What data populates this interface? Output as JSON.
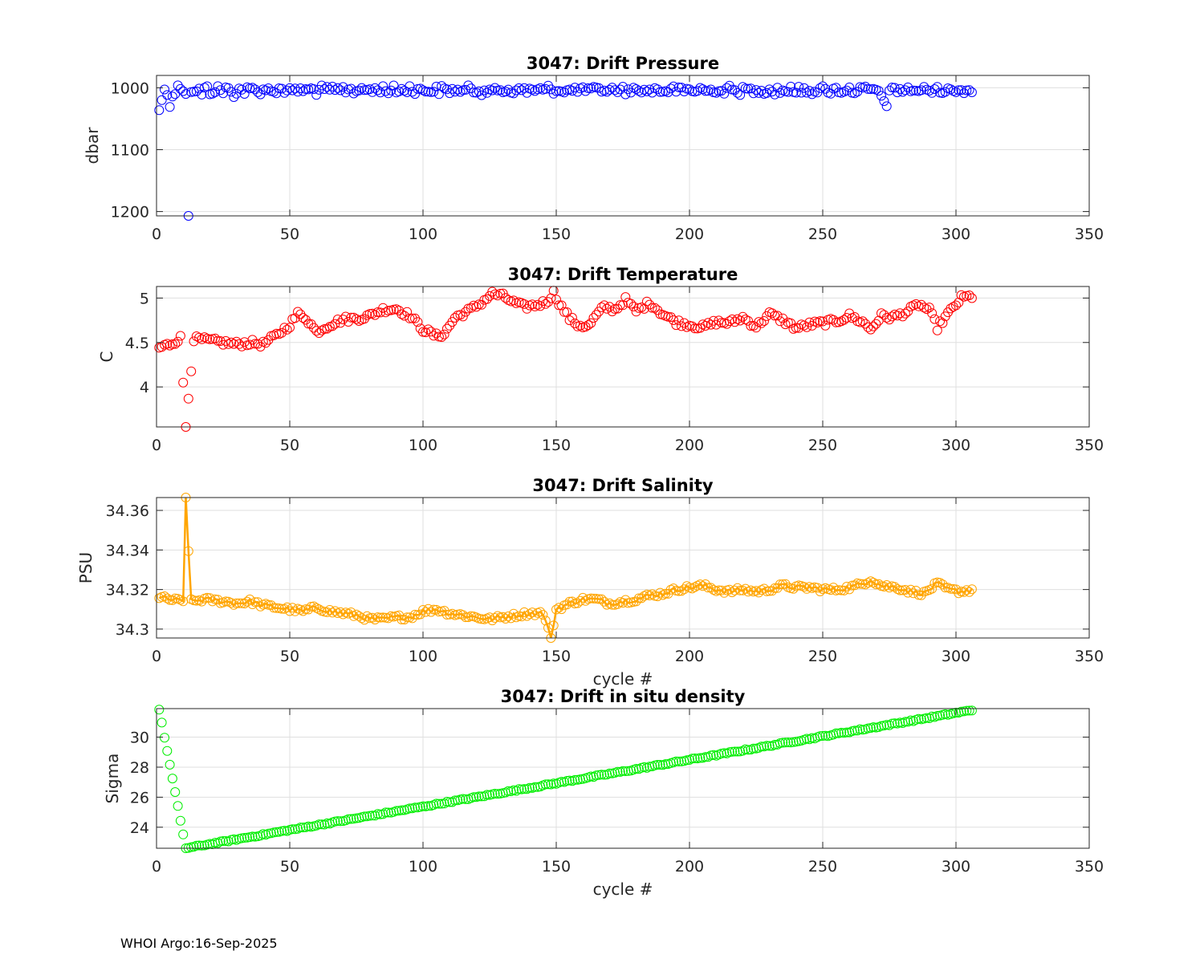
{
  "footer": "WHOI Argo:16-Sep-2025",
  "chart_data": [
    {
      "type": "scatter",
      "title": "3047: Drift Pressure",
      "xlabel": "",
      "ylabel": "dbar",
      "xlim": [
        0,
        350
      ],
      "ylim": [
        980,
        1207
      ],
      "yreverse": true,
      "xticks": [
        0,
        50,
        100,
        150,
        200,
        250,
        300,
        350
      ],
      "yticks": [
        1000,
        1100,
        1200
      ],
      "color": "#0000ff",
      "x_start": 1,
      "base": [
        1036,
        1018,
        1005,
        1010,
        1025,
        1012,
        1008,
        1000,
        997,
        1003,
        1006,
        1207,
        1004,
        1008,
        1002,
        1005,
        1010,
        1003,
        1001,
        1007,
        1005,
        1003,
        1002,
        1004,
        1006,
        1001,
        1003,
        1008,
        1010,
        1005,
        1002,
        1004,
        1006,
        1003,
        1005,
        1002,
        1004,
        1007,
        1005,
        1003,
        1001,
        1004,
        1006,
        1002,
        1005,
        1003,
        1001,
        1004,
        1002,
        1005,
        1003,
        1006,
        1004,
        1002,
        1003,
        1005,
        1004,
        1002,
        1003,
        1006,
        1004,
        1002,
        1005,
        1003,
        1001,
        1004,
        1006,
        1003,
        1005,
        1002,
        1004,
        1003,
        1001,
        1005,
        1004,
        1002,
        1006,
        1003,
        1004,
        1002,
        1005,
        1003,
        1004,
        1002,
        1001,
        1005,
        1004,
        1003,
        1002,
        1006,
        1004,
        1003,
        1001,
        1005,
        1000,
        1003,
        1004,
        1002,
        1005,
        1003,
        1004,
        1002,
        1006,
        1004,
        1003,
        1005,
        1002,
        1004,
        1003,
        1005,
        1004,
        1002,
        1006,
        1003,
        1005,
        1004,
        1002,
        1003,
        1005,
        1004,
        1002,
        1006,
        1003,
        1004,
        1005,
        1010,
        1003,
        1004,
        1002,
        1005,
        1004,
        1003,
        1006,
        1004,
        1002,
        1005,
        1003,
        1004,
        1006,
        1002,
        1005,
        1003,
        1004,
        1002,
        1006,
        1004,
        1001,
        1002,
        1004,
        1003,
        1005,
        1002,
        1004,
        1006,
        1003,
        1005,
        1004,
        1002,
        1003,
        1005,
        1004,
        1002,
        1006,
        1003,
        1004,
        1005,
        1003,
        1002,
        1004,
        1005,
        1003,
        1004,
        1002,
        1005,
        1003,
        1006,
        1004,
        1002,
        1003,
        1005,
        1004,
        1002,
        1006,
        1003,
        1005,
        1004,
        1003,
        1002,
        1004,
        1006,
        1003,
        1005,
        1004,
        1002,
        1003,
        1005,
        1004,
        1006,
        1002,
        1004,
        1003,
        1005,
        1004,
        1002,
        1003,
        1006,
        1004,
        1005,
        1002,
        1003,
        1004,
        1006,
        1005,
        1003,
        1002,
        1004,
        1005,
        1003,
        1006,
        1004,
        1002,
        1003,
        1005,
        1004,
        1006,
        1003,
        1002,
        1004,
        1005,
        1003,
        1004,
        1006,
        1002,
        1005,
        1003,
        1004,
        1006,
        1003,
        1002,
        1005,
        1004,
        1006,
        1003,
        1004,
        1002,
        1005,
        1006,
        1003,
        1004,
        1002,
        1005,
        1003,
        1006,
        1004,
        1002,
        1003,
        1005,
        1004,
        1002,
        1003,
        1004,
        1005,
        1003,
        1002,
        1004,
        1003,
        1005,
        1004,
        1002,
        1003,
        1010,
        1015,
        1020,
        1025,
        1008,
        1005,
        1003,
        1004,
        1002,
        1005,
        1003,
        1004,
        1002,
        1005,
        1003,
        1004,
        1006,
        1003,
        1002,
        1004,
        1005,
        1003,
        1004,
        1002,
        1005,
        1003,
        1004,
        1006,
        1003,
        1002,
        1005,
        1004,
        1003,
        1002,
        1004,
        1005,
        1003
      ],
      "spread": 6
    },
    {
      "type": "scatter",
      "title": "3047: Drift Temperature",
      "xlabel": "",
      "ylabel": "C",
      "xlim": [
        0,
        350
      ],
      "ylim": [
        3.55,
        5.13
      ],
      "xticks": [
        0,
        50,
        100,
        150,
        200,
        250,
        300,
        350
      ],
      "yticks": [
        4,
        4.5,
        5
      ],
      "color": "#ff0000",
      "x_start": 1,
      "keys": [
        [
          1,
          4.44
        ],
        [
          5,
          4.48
        ],
        [
          9,
          4.55
        ],
        [
          11,
          3.55
        ],
        [
          14,
          4.54
        ],
        [
          20,
          4.52
        ],
        [
          25,
          4.5
        ],
        [
          30,
          4.48
        ],
        [
          35,
          4.5
        ],
        [
          40,
          4.48
        ],
        [
          45,
          4.58
        ],
        [
          50,
          4.7
        ],
        [
          53,
          4.82
        ],
        [
          56,
          4.78
        ],
        [
          60,
          4.62
        ],
        [
          65,
          4.7
        ],
        [
          70,
          4.76
        ],
        [
          75,
          4.77
        ],
        [
          80,
          4.8
        ],
        [
          85,
          4.87
        ],
        [
          90,
          4.88
        ],
        [
          95,
          4.8
        ],
        [
          100,
          4.65
        ],
        [
          105,
          4.57
        ],
        [
          108,
          4.6
        ],
        [
          112,
          4.78
        ],
        [
          118,
          4.87
        ],
        [
          122,
          4.95
        ],
        [
          126,
          5.05
        ],
        [
          130,
          5.02
        ],
        [
          134,
          4.95
        ],
        [
          138,
          4.9
        ],
        [
          142,
          4.92
        ],
        [
          146,
          4.95
        ],
        [
          149,
          5.06
        ],
        [
          152,
          4.9
        ],
        [
          155,
          4.77
        ],
        [
          158,
          4.7
        ],
        [
          162,
          4.68
        ],
        [
          165,
          4.8
        ],
        [
          168,
          4.9
        ],
        [
          172,
          4.87
        ],
        [
          176,
          4.98
        ],
        [
          180,
          4.85
        ],
        [
          185,
          4.95
        ],
        [
          190,
          4.82
        ],
        [
          195,
          4.73
        ],
        [
          200,
          4.7
        ],
        [
          205,
          4.67
        ],
        [
          210,
          4.73
        ],
        [
          215,
          4.72
        ],
        [
          220,
          4.78
        ],
        [
          225,
          4.68
        ],
        [
          230,
          4.82
        ],
        [
          235,
          4.75
        ],
        [
          240,
          4.66
        ],
        [
          245,
          4.7
        ],
        [
          250,
          4.72
        ],
        [
          255,
          4.74
        ],
        [
          260,
          4.8
        ],
        [
          265,
          4.73
        ],
        [
          268,
          4.65
        ],
        [
          272,
          4.8
        ],
        [
          276,
          4.78
        ],
        [
          282,
          4.85
        ],
        [
          286,
          4.93
        ],
        [
          290,
          4.86
        ],
        [
          293,
          4.67
        ],
        [
          297,
          4.82
        ],
        [
          302,
          5.0
        ],
        [
          306,
          5.02
        ]
      ],
      "spread": 0.035
    },
    {
      "type": "line",
      "title": "3047: Drift Salinity",
      "xlabel": "cycle #",
      "ylabel": "PSU",
      "xlim": [
        0,
        350
      ],
      "ylim": [
        34.2955,
        34.3665
      ],
      "xticks": [
        0,
        50,
        100,
        150,
        200,
        250,
        300,
        350
      ],
      "yticks": [
        34.3,
        34.32,
        34.34,
        34.36
      ],
      "ytick_labels": [
        "34.3",
        "34.32",
        "34.34",
        "34.36"
      ],
      "color": "#ffa500",
      "x_start": 1,
      "keys": [
        [
          1,
          34.316
        ],
        [
          5,
          34.315
        ],
        [
          10,
          34.314
        ],
        [
          11,
          34.3665
        ],
        [
          13,
          34.314
        ],
        [
          18,
          34.315
        ],
        [
          25,
          34.314
        ],
        [
          30,
          34.313
        ],
        [
          35,
          34.314
        ],
        [
          40,
          34.312
        ],
        [
          45,
          34.311
        ],
        [
          50,
          34.31
        ],
        [
          55,
          34.309
        ],
        [
          60,
          34.311
        ],
        [
          65,
          34.309
        ],
        [
          70,
          34.308
        ],
        [
          75,
          34.307
        ],
        [
          80,
          34.305
        ],
        [
          85,
          34.305
        ],
        [
          90,
          34.306
        ],
        [
          95,
          34.306
        ],
        [
          100,
          34.309
        ],
        [
          105,
          34.31
        ],
        [
          110,
          34.308
        ],
        [
          115,
          34.307
        ],
        [
          120,
          34.306
        ],
        [
          125,
          34.305
        ],
        [
          130,
          34.306
        ],
        [
          135,
          34.307
        ],
        [
          140,
          34.308
        ],
        [
          145,
          34.308
        ],
        [
          148,
          34.2955
        ],
        [
          150,
          34.31
        ],
        [
          155,
          34.313
        ],
        [
          160,
          34.315
        ],
        [
          165,
          34.315
        ],
        [
          170,
          34.313
        ],
        [
          175,
          34.314
        ],
        [
          180,
          34.315
        ],
        [
          185,
          34.317
        ],
        [
          190,
          34.318
        ],
        [
          195,
          34.32
        ],
        [
          200,
          34.321
        ],
        [
          205,
          34.322
        ],
        [
          210,
          34.32
        ],
        [
          215,
          34.319
        ],
        [
          220,
          34.32
        ],
        [
          225,
          34.319
        ],
        [
          230,
          34.32
        ],
        [
          235,
          34.322
        ],
        [
          240,
          34.321
        ],
        [
          245,
          34.321
        ],
        [
          250,
          34.32
        ],
        [
          255,
          34.32
        ],
        [
          260,
          34.321
        ],
        [
          265,
          34.323
        ],
        [
          268,
          34.325
        ],
        [
          272,
          34.322
        ],
        [
          278,
          34.321
        ],
        [
          283,
          34.319
        ],
        [
          288,
          34.318
        ],
        [
          293,
          34.323
        ],
        [
          297,
          34.32
        ],
        [
          302,
          34.319
        ],
        [
          306,
          34.32
        ]
      ],
      "spread": 0.0012
    },
    {
      "type": "scatter",
      "title": "3047: Drift in situ density",
      "xlabel": "cycle #",
      "ylabel": "Sigma",
      "xlim": [
        0,
        350
      ],
      "ylim": [
        22.6,
        31.9
      ],
      "xticks": [
        0,
        50,
        100,
        150,
        200,
        250,
        300,
        350
      ],
      "yticks": [
        24,
        26,
        28,
        30
      ],
      "color": "#00ee00",
      "x_start": 1,
      "keys": [
        [
          1,
          31.85
        ],
        [
          11,
          22.6
        ],
        [
          306,
          31.8
        ]
      ],
      "spread": 0.05
    }
  ]
}
